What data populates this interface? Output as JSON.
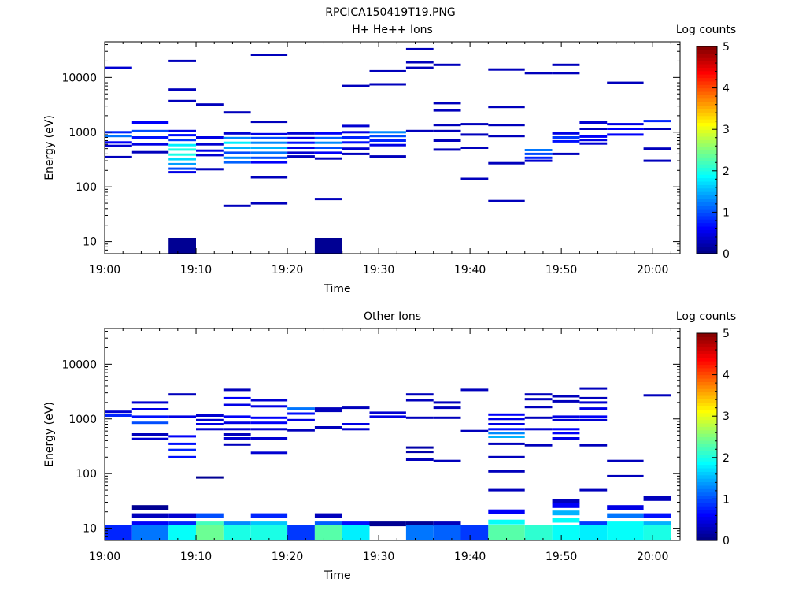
{
  "figure_title": "RPCICA150419T19.PNG",
  "colormap": {
    "stops": [
      "#00007f",
      "#0000ff",
      "#0080ff",
      "#00ffff",
      "#80ff80",
      "#ffff00",
      "#ff8000",
      "#ff0000",
      "#7f0000"
    ]
  },
  "chart_data": [
    {
      "type": "heatmap",
      "title": "H+ He++ Ions",
      "xlabel": "Time",
      "ylabel": "Energy (eV)",
      "yscale": "log",
      "ylim": [
        6,
        45000
      ],
      "xlim": [
        "19:00",
        "20:03"
      ],
      "x_ticks": [
        "19:00",
        "19:10",
        "19:20",
        "19:30",
        "19:40",
        "19:50",
        "20:00"
      ],
      "y_ticks": [
        "10",
        "100",
        "1000",
        "10000"
      ],
      "colorbar": {
        "label": "Log counts",
        "range": [
          0,
          5
        ],
        "ticks": [
          "0",
          "1",
          "2",
          "3",
          "4",
          "5"
        ]
      },
      "time_bins": [
        "19:00",
        "19:03",
        "19:07",
        "19:10",
        "19:13",
        "19:16",
        "19:20",
        "19:23",
        "19:26",
        "19:29",
        "19:33",
        "19:36",
        "19:39",
        "19:42",
        "19:46",
        "19:49",
        "19:52",
        "19:55",
        "19:59"
      ],
      "cells": [
        [
          0,
          15000,
          0.4
        ],
        [
          0,
          1000,
          0.8
        ],
        [
          0,
          850,
          1.2
        ],
        [
          0,
          650,
          0.6
        ],
        [
          0,
          560,
          0.4
        ],
        [
          0,
          350,
          0.3
        ],
        [
          1,
          1500,
          0.6
        ],
        [
          1,
          1050,
          1.0
        ],
        [
          1,
          800,
          0.7
        ],
        [
          1,
          600,
          0.5
        ],
        [
          1,
          430,
          0.3
        ],
        [
          2,
          20000,
          0.3
        ],
        [
          2,
          6000,
          0.3
        ],
        [
          2,
          3700,
          0.3
        ],
        [
          2,
          1050,
          0.5
        ],
        [
          2,
          880,
          0.7
        ],
        [
          2,
          720,
          0.9
        ],
        [
          2,
          580,
          1.8
        ],
        [
          2,
          480,
          2.0
        ],
        [
          2,
          390,
          2.0
        ],
        [
          2,
          320,
          1.7
        ],
        [
          2,
          260,
          1.4
        ],
        [
          2,
          215,
          1.0
        ],
        [
          2,
          185,
          0.5
        ],
        [
          2,
          9,
          0.1
        ],
        [
          3,
          3200,
          0.3
        ],
        [
          3,
          800,
          0.5
        ],
        [
          3,
          600,
          0.4
        ],
        [
          3,
          460,
          0.5
        ],
        [
          3,
          380,
          0.4
        ],
        [
          3,
          210,
          0.3
        ],
        [
          4,
          2300,
          0.3
        ],
        [
          4,
          950,
          0.4
        ],
        [
          4,
          780,
          1.3
        ],
        [
          4,
          640,
          1.8
        ],
        [
          4,
          520,
          1.5
        ],
        [
          4,
          420,
          1.0
        ],
        [
          4,
          340,
          1.3
        ],
        [
          4,
          280,
          1.1
        ],
        [
          4,
          45,
          0.3
        ],
        [
          5,
          26000,
          0.3
        ],
        [
          5,
          1550,
          0.3
        ],
        [
          5,
          920,
          0.5
        ],
        [
          5,
          780,
          1.0
        ],
        [
          5,
          640,
          1.3
        ],
        [
          5,
          520,
          1.5
        ],
        [
          5,
          420,
          1.2
        ],
        [
          5,
          340,
          1.0
        ],
        [
          5,
          280,
          0.6
        ],
        [
          5,
          150,
          0.3
        ],
        [
          5,
          50,
          0.3
        ],
        [
          6,
          950,
          0.4
        ],
        [
          6,
          780,
          0.5
        ],
        [
          6,
          640,
          0.7
        ],
        [
          6,
          520,
          0.5
        ],
        [
          6,
          420,
          0.4
        ],
        [
          6,
          360,
          0.3
        ],
        [
          7,
          950,
          0.6
        ],
        [
          7,
          780,
          1.1
        ],
        [
          7,
          640,
          1.3
        ],
        [
          7,
          520,
          1.0
        ],
        [
          7,
          420,
          0.6
        ],
        [
          7,
          330,
          0.3
        ],
        [
          7,
          60,
          0.3
        ],
        [
          7,
          9,
          0.1
        ],
        [
          8,
          7000,
          0.3
        ],
        [
          8,
          1300,
          0.4
        ],
        [
          8,
          1000,
          0.5
        ],
        [
          8,
          800,
          0.8
        ],
        [
          8,
          650,
          0.7
        ],
        [
          8,
          500,
          0.4
        ],
        [
          8,
          400,
          0.3
        ],
        [
          9,
          13000,
          0.3
        ],
        [
          9,
          7500,
          0.3
        ],
        [
          9,
          1000,
          1.3
        ],
        [
          9,
          850,
          1.0
        ],
        [
          9,
          700,
          0.8
        ],
        [
          9,
          580,
          0.5
        ],
        [
          9,
          360,
          0.3
        ],
        [
          10,
          33000,
          0.3
        ],
        [
          10,
          19000,
          0.3
        ],
        [
          10,
          15000,
          0.3
        ],
        [
          10,
          1050,
          0.3
        ],
        [
          11,
          17000,
          0.3
        ],
        [
          11,
          3400,
          0.3
        ],
        [
          11,
          2500,
          0.3
        ],
        [
          11,
          1350,
          0.3
        ],
        [
          11,
          1050,
          0.3
        ],
        [
          11,
          700,
          0.3
        ],
        [
          11,
          480,
          0.3
        ],
        [
          12,
          1400,
          0.3
        ],
        [
          12,
          900,
          0.3
        ],
        [
          12,
          520,
          0.3
        ],
        [
          12,
          140,
          0.3
        ],
        [
          13,
          14000,
          0.3
        ],
        [
          13,
          2900,
          0.3
        ],
        [
          13,
          1350,
          0.3
        ],
        [
          13,
          850,
          0.3
        ],
        [
          13,
          270,
          0.3
        ],
        [
          13,
          55,
          0.3
        ],
        [
          14,
          12000,
          0.3
        ],
        [
          14,
          470,
          1.2
        ],
        [
          14,
          400,
          1.0
        ],
        [
          14,
          340,
          0.8
        ],
        [
          14,
          300,
          0.4
        ],
        [
          15,
          17000,
          0.3
        ],
        [
          15,
          12000,
          0.3
        ],
        [
          15,
          950,
          0.5
        ],
        [
          15,
          800,
          0.9
        ],
        [
          15,
          680,
          0.7
        ],
        [
          15,
          400,
          0.3
        ],
        [
          16,
          1500,
          0.4
        ],
        [
          16,
          1150,
          0.3
        ],
        [
          16,
          830,
          0.6
        ],
        [
          16,
          720,
          0.5
        ],
        [
          16,
          620,
          0.4
        ],
        [
          17,
          8000,
          0.3
        ],
        [
          17,
          1400,
          0.5
        ],
        [
          17,
          1150,
          0.6
        ],
        [
          17,
          900,
          0.6
        ],
        [
          18,
          1600,
          0.8
        ],
        [
          18,
          1150,
          0.3
        ],
        [
          18,
          500,
          0.3
        ],
        [
          18,
          300,
          0.3
        ]
      ]
    },
    {
      "type": "heatmap",
      "title": "Other Ions",
      "xlabel": "Time",
      "ylabel": "Energy (eV)",
      "yscale": "log",
      "ylim": [
        6,
        45000
      ],
      "xlim": [
        "19:00",
        "20:03"
      ],
      "x_ticks": [
        "19:00",
        "19:10",
        "19:20",
        "19:30",
        "19:40",
        "19:50",
        "20:00"
      ],
      "y_ticks": [
        "10",
        "100",
        "1000",
        "10000"
      ],
      "colorbar": {
        "label": "Log counts",
        "range": [
          0,
          5
        ],
        "ticks": [
          "0",
          "1",
          "2",
          "3",
          "4",
          "5"
        ]
      },
      "time_bins": [
        "19:00",
        "19:03",
        "19:07",
        "19:10",
        "19:13",
        "19:16",
        "19:20",
        "19:23",
        "19:26",
        "19:29",
        "19:33",
        "19:36",
        "19:39",
        "19:42",
        "19:46",
        "19:49",
        "19:52",
        "19:55",
        "19:59"
      ],
      "cells": [
        [
          0,
          1350,
          0.4
        ],
        [
          0,
          1150,
          0.8
        ],
        [
          0,
          9,
          0.8
        ],
        [
          1,
          2000,
          0.4
        ],
        [
          1,
          1500,
          0.5
        ],
        [
          1,
          1100,
          0.7
        ],
        [
          1,
          850,
          1.0
        ],
        [
          1,
          520,
          0.3
        ],
        [
          1,
          430,
          0.4
        ],
        [
          1,
          24,
          0.1
        ],
        [
          1,
          17,
          0.3
        ],
        [
          1,
          12,
          0.6
        ],
        [
          1,
          9,
          1.2
        ],
        [
          2,
          2800,
          0.3
        ],
        [
          2,
          1100,
          0.5
        ],
        [
          2,
          480,
          0.6
        ],
        [
          2,
          350,
          0.7
        ],
        [
          2,
          270,
          0.8
        ],
        [
          2,
          200,
          0.7
        ],
        [
          2,
          17,
          0.4
        ],
        [
          2,
          12,
          0.8
        ],
        [
          2,
          9,
          1.9
        ],
        [
          3,
          1150,
          0.4
        ],
        [
          3,
          950,
          0.4
        ],
        [
          3,
          800,
          0.5
        ],
        [
          3,
          650,
          0.4
        ],
        [
          3,
          85,
          0.1
        ],
        [
          3,
          17,
          1.0
        ],
        [
          3,
          12,
          2.2
        ],
        [
          3,
          9,
          2.4
        ],
        [
          4,
          3400,
          0.3
        ],
        [
          4,
          2400,
          0.6
        ],
        [
          4,
          1800,
          0.5
        ],
        [
          4,
          1100,
          0.6
        ],
        [
          4,
          850,
          0.5
        ],
        [
          4,
          650,
          0.4
        ],
        [
          4,
          520,
          0.3
        ],
        [
          4,
          440,
          0.4
        ],
        [
          4,
          340,
          0.3
        ],
        [
          4,
          12,
          1.3
        ],
        [
          4,
          9,
          2.0
        ],
        [
          5,
          2200,
          0.4
        ],
        [
          5,
          1700,
          0.5
        ],
        [
          5,
          1050,
          0.6
        ],
        [
          5,
          850,
          0.6
        ],
        [
          5,
          650,
          0.4
        ],
        [
          5,
          440,
          0.4
        ],
        [
          5,
          240,
          0.4
        ],
        [
          5,
          17,
          0.8
        ],
        [
          5,
          12,
          1.6
        ],
        [
          5,
          9,
          2.0
        ],
        [
          6,
          1550,
          1.2
        ],
        [
          6,
          1250,
          0.7
        ],
        [
          6,
          950,
          0.5
        ],
        [
          6,
          620,
          0.3
        ],
        [
          6,
          9,
          0.9
        ],
        [
          7,
          1550,
          0.3
        ],
        [
          7,
          1400,
          0.3
        ],
        [
          7,
          700,
          0.3
        ],
        [
          7,
          17,
          0.3
        ],
        [
          7,
          12,
          1.1
        ],
        [
          7,
          9,
          2.3
        ],
        [
          8,
          1600,
          0.3
        ],
        [
          8,
          800,
          0.5
        ],
        [
          8,
          650,
          0.4
        ],
        [
          8,
          12,
          0.7
        ],
        [
          8,
          9,
          1.8
        ],
        [
          9,
          1300,
          0.4
        ],
        [
          9,
          1100,
          0.5
        ],
        [
          9,
          12,
          0.1
        ],
        [
          10,
          2800,
          0.3
        ],
        [
          10,
          2200,
          0.3
        ],
        [
          10,
          1050,
          0.3
        ],
        [
          10,
          300,
          0.2
        ],
        [
          10,
          250,
          0.2
        ],
        [
          10,
          180,
          0.3
        ],
        [
          10,
          12,
          0.1
        ],
        [
          10,
          9,
          1.2
        ],
        [
          11,
          2000,
          0.3
        ],
        [
          11,
          1600,
          0.3
        ],
        [
          11,
          1050,
          0.3
        ],
        [
          11,
          170,
          0.3
        ],
        [
          11,
          12,
          0.3
        ],
        [
          11,
          9,
          1.1
        ],
        [
          12,
          3400,
          0.3
        ],
        [
          12,
          600,
          0.3
        ],
        [
          12,
          9,
          0.9
        ],
        [
          13,
          1200,
          0.6
        ],
        [
          13,
          1000,
          0.5
        ],
        [
          13,
          800,
          0.5
        ],
        [
          13,
          650,
          0.7
        ],
        [
          13,
          550,
          1.3
        ],
        [
          13,
          470,
          1.5
        ],
        [
          13,
          350,
          0.3
        ],
        [
          13,
          200,
          0.3
        ],
        [
          13,
          110,
          0.3
        ],
        [
          13,
          50,
          0.3
        ],
        [
          13,
          20,
          0.6
        ],
        [
          13,
          13,
          1.9
        ],
        [
          13,
          9,
          2.3
        ],
        [
          14,
          2800,
          0.3
        ],
        [
          14,
          2300,
          0.3
        ],
        [
          14,
          1650,
          0.3
        ],
        [
          14,
          1050,
          0.3
        ],
        [
          14,
          650,
          0.4
        ],
        [
          14,
          330,
          0.3
        ],
        [
          14,
          9,
          2.1
        ],
        [
          15,
          2600,
          0.3
        ],
        [
          15,
          2100,
          0.3
        ],
        [
          15,
          1100,
          0.5
        ],
        [
          15,
          950,
          0.4
        ],
        [
          15,
          650,
          0.6
        ],
        [
          15,
          550,
          0.6
        ],
        [
          15,
          440,
          0.5
        ],
        [
          15,
          31,
          0.3
        ],
        [
          15,
          26,
          0.6
        ],
        [
          15,
          19,
          1.5
        ],
        [
          15,
          14,
          1.9
        ],
        [
          15,
          9,
          1.9
        ],
        [
          16,
          3600,
          0.3
        ],
        [
          16,
          2400,
          0.3
        ],
        [
          16,
          2000,
          0.4
        ],
        [
          16,
          1550,
          0.5
        ],
        [
          16,
          1100,
          0.6
        ],
        [
          16,
          950,
          0.4
        ],
        [
          16,
          330,
          0.3
        ],
        [
          16,
          50,
          0.3
        ],
        [
          16,
          12,
          0.9
        ],
        [
          16,
          9,
          1.8
        ],
        [
          17,
          170,
          0.3
        ],
        [
          17,
          90,
          0.3
        ],
        [
          17,
          24,
          0.5
        ],
        [
          17,
          17,
          1.2
        ],
        [
          17,
          12,
          1.9
        ],
        [
          17,
          9,
          1.9
        ],
        [
          18,
          2700,
          0.3
        ],
        [
          18,
          35,
          0.3
        ],
        [
          18,
          17,
          0.7
        ],
        [
          18,
          12,
          1.5
        ],
        [
          18,
          9,
          2.0
        ]
      ]
    }
  ]
}
